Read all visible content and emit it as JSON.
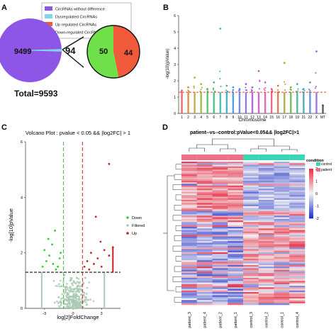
{
  "colors": {
    "no_diff": "#8e56e6",
    "dysregulated": "#7fd6e8",
    "up": "#f05a3b",
    "down": "#6fe04a",
    "volcano_down": "#33cc33",
    "volcano_filtered": "#a9c9b3",
    "volcano_up": "#cc2020",
    "heat_high": "#e8334a",
    "heat_low": "#2233cc",
    "heat_mid": "#f2f2f2",
    "control_bar": "#39d5b5",
    "patient_bar": "#ee6f8a"
  },
  "panels": {
    "A": {
      "label": "A",
      "legend": [
        "CircRNAs without difference",
        "Dysregulated CircRNAs",
        "Up regulated CircRNAs",
        "Down-regulated CircRNAs"
      ],
      "big_value": "9499",
      "arrow_value": "94",
      "up_value": "44",
      "down_value": "50",
      "total": "Total=9593"
    },
    "B": {
      "label": "B",
      "xlabel": "Chromosome",
      "ylabel": "-log(10)(pValue)"
    },
    "C": {
      "label": "C",
      "title": "Volcano Plot : pvalue < 0.05 && |log2FC| > 1",
      "xlabel": "log[2]FoldChange",
      "ylabel": "-log[10]pValue"
    },
    "D": {
      "label": "D",
      "title": "patient--vs--control:pValue<0.05&& |log2FC|>1",
      "legend_title": "condition",
      "legend_items": [
        "control",
        "patient"
      ]
    }
  },
  "chart_data": [
    {
      "type": "pie",
      "title": "",
      "slices": [
        {
          "name": "CircRNAs without difference",
          "value": 9499
        },
        {
          "name": "Dysregulated CircRNAs",
          "value": 94
        }
      ],
      "detail": [
        {
          "name": "Up regulated CircRNAs",
          "value": 44
        },
        {
          "name": "Down-regulated CircRNAs",
          "value": 50
        }
      ],
      "total": 9593
    },
    {
      "type": "scatter",
      "xlabel": "Chromosome",
      "ylabel": "-log(10)(pValue)",
      "categories": [
        "1",
        "2",
        "3",
        "4",
        "5",
        "6",
        "7",
        "8",
        "9",
        "10",
        "11",
        "12",
        "13",
        "14",
        "15",
        "16",
        "17",
        "18",
        "19",
        "21",
        "22",
        "X",
        "MT"
      ],
      "ylim": [
        0,
        6
      ],
      "yticks": [
        0,
        1,
        2,
        3,
        4,
        5,
        6
      ],
      "threshold": 1.3,
      "series": [
        {
          "values": [
            1.4,
            1.6,
            2.2,
            1.8,
            1.5,
            1.9,
            5.2,
            1.7,
            1.6,
            1.5,
            1.8,
            1.6,
            2.6,
            1.9,
            1.5,
            1.7,
            3.1,
            1.6,
            1.8,
            1.5,
            1.9,
            3.8,
            0.5
          ]
        }
      ]
    },
    {
      "type": "scatter",
      "title": "Volcano Plot : pvalue < 0.05 && |log2FC| > 1",
      "xlabel": "log[2]FoldChange",
      "ylabel": "-log[10]pValue",
      "xlim": [
        -5,
        5
      ],
      "ylim": [
        0,
        6
      ],
      "xticks": [
        -3,
        0,
        3
      ],
      "yticks": [
        0,
        2,
        4,
        6
      ],
      "thresholds": {
        "x": [
          -1,
          1
        ],
        "y": 1.3
      },
      "legend": [
        "Down",
        "Filtered",
        "Up"
      ],
      "series": [
        {
          "name": "Down",
          "points": [
            [
              -3.2,
              1.5
            ],
            [
              -2.8,
              1.7
            ],
            [
              -2.5,
              1.9
            ],
            [
              -2.2,
              2.3
            ],
            [
              -2.1,
              1.6
            ],
            [
              -1.9,
              2.8
            ],
            [
              -1.6,
              1.5
            ],
            [
              -1.4,
              1.8
            ],
            [
              -1.3,
              2.0
            ],
            [
              -2.6,
              2.5
            ],
            [
              -3.0,
              2.1
            ],
            [
              -1.8,
              1.4
            ]
          ]
        },
        {
          "name": "Filtered",
          "points": [
            [
              -0.5,
              0.3
            ],
            [
              0.2,
              0.4
            ],
            [
              0.5,
              0.2
            ],
            [
              -0.8,
              0.6
            ],
            [
              0.9,
              0.5
            ],
            [
              -1.2,
              0.8
            ],
            [
              1.1,
              0.9
            ],
            [
              -0.3,
              1.0
            ],
            [
              0.4,
              1.1
            ],
            [
              -0.6,
              0.15
            ],
            [
              0.7,
              0.7
            ],
            [
              -1.5,
              0.4
            ],
            [
              1.6,
              0.3
            ],
            [
              0.0,
              0.6
            ],
            [
              -0.1,
              0.25
            ],
            [
              0.3,
              0.9
            ],
            [
              -0.9,
              1.2
            ],
            [
              1.3,
              1.1
            ]
          ]
        },
        {
          "name": "Up",
          "points": [
            [
              1.2,
              1.5
            ],
            [
              1.5,
              1.7
            ],
            [
              1.9,
              2.0
            ],
            [
              2.2,
              1.6
            ],
            [
              2.6,
              1.8
            ],
            [
              3.0,
              1.5
            ],
            [
              3.3,
              2.1
            ],
            [
              3.8,
              1.9
            ],
            [
              2.4,
              3.3
            ],
            [
              3.8,
              5.2
            ],
            [
              4.2,
              2.2
            ],
            [
              1.7,
              1.4
            ],
            [
              2.9,
              2.4
            ]
          ]
        }
      ]
    },
    {
      "type": "heatmap",
      "title": "patient--vs--control:pValue<0.05&& |log2FC|>1",
      "columns": [
        "patient_3",
        "patient_4",
        "patient_2",
        "patient_1",
        "control_3",
        "control_2",
        "control_1",
        "control_4"
      ],
      "condition": [
        "patient",
        "patient",
        "patient",
        "patient",
        "control",
        "control",
        "control",
        "control"
      ],
      "color_scale": {
        "min": -2,
        "max": 2,
        "ticks": [
          2,
          1,
          0,
          -1,
          -2
        ]
      },
      "legend_title": "condition",
      "legend": [
        "control",
        "patient"
      ]
    }
  ]
}
